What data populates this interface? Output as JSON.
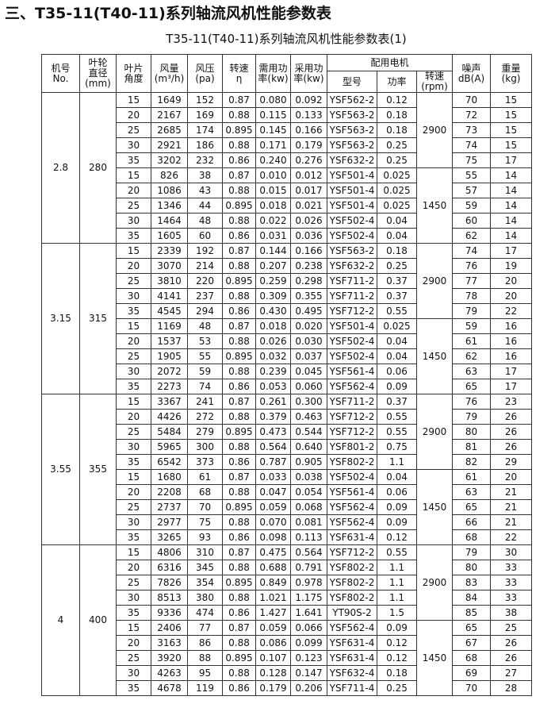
{
  "header": {
    "title": "三、T35-11(T40-11)系列轴流风机性能参数表",
    "subtitle": "T35-11(T40-11)系列轴流风机性能参数表(1)"
  },
  "table": {
    "columns_left": [
      [
        "机号",
        "No."
      ],
      [
        "叶轮",
        "直径",
        "(mm)"
      ],
      [
        "叶片",
        "角度"
      ],
      [
        "风量",
        "(m³/h)"
      ],
      [
        "风压",
        "(pa)"
      ],
      [
        "转速",
        "η"
      ],
      [
        "需用功",
        "率(kw)"
      ],
      [
        "采用功",
        "率(kw)"
      ]
    ],
    "motor": {
      "label": "配用电机",
      "columns": [
        [
          "型号"
        ],
        [
          "功率"
        ],
        [
          "转速",
          "(rpm)"
        ]
      ]
    },
    "columns_right": [
      [
        "噪声",
        "dB(A)"
      ],
      [
        "重量",
        "(kg)"
      ]
    ],
    "groups": [
      {
        "no": "2.8",
        "diameter": "280",
        "subgroups": [
          {
            "rpm": "2900",
            "rows": [
              [
                "15",
                "1649",
                "152",
                "0.87",
                "0.080",
                "0.092",
                "YSF562-2",
                "0.12",
                "70",
                "15"
              ],
              [
                "20",
                "2167",
                "169",
                "0.88",
                "0.115",
                "0.133",
                "YSF563-2",
                "0.18",
                "72",
                "15"
              ],
              [
                "25",
                "2685",
                "174",
                "0.895",
                "0.145",
                "0.166",
                "YSF563-2",
                "0.18",
                "73",
                "15"
              ],
              [
                "30",
                "2921",
                "186",
                "0.88",
                "0.171",
                "0.179",
                "YSF563-2",
                "0.25",
                "74",
                "15"
              ],
              [
                "35",
                "3202",
                "232",
                "0.86",
                "0.240",
                "0.276",
                "YSF632-2",
                "0.25",
                "75",
                "17"
              ]
            ]
          },
          {
            "rpm": "1450",
            "rows": [
              [
                "15",
                "826",
                "38",
                "0.87",
                "0.010",
                "0.012",
                "YSF501-4",
                "0.025",
                "55",
                "14"
              ],
              [
                "20",
                "1086",
                "43",
                "0.88",
                "0.015",
                "0.017",
                "YSF501-4",
                "0.025",
                "57",
                "14"
              ],
              [
                "25",
                "1346",
                "44",
                "0.895",
                "0.018",
                "0.021",
                "YSF501-4",
                "0.025",
                "59",
                "14"
              ],
              [
                "30",
                "1464",
                "48",
                "0.88",
                "0.022",
                "0.026",
                "YSF502-4",
                "0.04",
                "60",
                "14"
              ],
              [
                "35",
                "1605",
                "60",
                "0.86",
                "0.031",
                "0.036",
                "YSF502-4",
                "0.04",
                "62",
                "14"
              ]
            ]
          }
        ]
      },
      {
        "no": "3.15",
        "diameter": "315",
        "subgroups": [
          {
            "rpm": "2900",
            "rows": [
              [
                "15",
                "2339",
                "192",
                "0.87",
                "0.144",
                "0.166",
                "YSF563-2",
                "0.18",
                "74",
                "17"
              ],
              [
                "20",
                "3070",
                "214",
                "0.88",
                "0.207",
                "0.238",
                "YSF632-2",
                "0.25",
                "76",
                "19"
              ],
              [
                "25",
                "3810",
                "220",
                "0.895",
                "0.259",
                "0.298",
                "YSF711-2",
                "0.37",
                "77",
                "20"
              ],
              [
                "30",
                "4141",
                "237",
                "0.88",
                "0.309",
                "0.355",
                "YSF711-2",
                "0.37",
                "78",
                "20"
              ],
              [
                "35",
                "4545",
                "294",
                "0.86",
                "0.430",
                "0.495",
                "YSF712-2",
                "0.55",
                "79",
                "22"
              ]
            ]
          },
          {
            "rpm": "1450",
            "rows": [
              [
                "15",
                "1169",
                "48",
                "0.87",
                "0.018",
                "0.020",
                "YSF501-4",
                "0.025",
                "59",
                "16"
              ],
              [
                "20",
                "1537",
                "53",
                "0.88",
                "0.026",
                "0.030",
                "YSF502-4",
                "0.04",
                "61",
                "16"
              ],
              [
                "25",
                "1905",
                "55",
                "0.895",
                "0.032",
                "0.037",
                "YSF502-4",
                "0.04",
                "62",
                "16"
              ],
              [
                "30",
                "2072",
                "59",
                "0.88",
                "0.239",
                "0.045",
                "YSF561-4",
                "0.06",
                "63",
                "17"
              ],
              [
                "35",
                "2273",
                "74",
                "0.86",
                "0.053",
                "0.060",
                "YSF562-4",
                "0.09",
                "65",
                "17"
              ]
            ]
          }
        ]
      },
      {
        "no": "3.55",
        "diameter": "355",
        "subgroups": [
          {
            "rpm": "2900",
            "rows": [
              [
                "15",
                "3367",
                "241",
                "0.87",
                "0.261",
                "0.300",
                "YSF711-2",
                "0.37",
                "76",
                "23"
              ],
              [
                "20",
                "4426",
                "272",
                "0.88",
                "0.379",
                "0.463",
                "YSF712-2",
                "0.55",
                "79",
                "26"
              ],
              [
                "25",
                "5484",
                "279",
                "0.895",
                "0.473",
                "0.544",
                "YSF712-2",
                "0.55",
                "80",
                "26"
              ],
              [
                "30",
                "5965",
                "300",
                "0.88",
                "0.564",
                "0.640",
                "YSF801-2",
                "0.75",
                "81",
                "26"
              ],
              [
                "35",
                "6542",
                "373",
                "0.86",
                "0.787",
                "0.905",
                "YSF802-2",
                "1.1",
                "82",
                "29"
              ]
            ]
          },
          {
            "rpm": "1450",
            "rows": [
              [
                "15",
                "1680",
                "61",
                "0.87",
                "0.033",
                "0.038",
                "YSF502-4",
                "0.04",
                "61",
                "20"
              ],
              [
                "20",
                "2208",
                "68",
                "0.88",
                "0.047",
                "0.054",
                "YSF561-4",
                "0.06",
                "63",
                "21"
              ],
              [
                "25",
                "2737",
                "70",
                "0.895",
                "0.059",
                "0.068",
                "YSF562-4",
                "0.09",
                "65",
                "21"
              ],
              [
                "30",
                "2977",
                "75",
                "0.88",
                "0.070",
                "0.081",
                "YSF562-4",
                "0.09",
                "66",
                "21"
              ],
              [
                "35",
                "3265",
                "93",
                "0.86",
                "0.098",
                "0.113",
                "YSF631-4",
                "0.12",
                "68",
                "22"
              ]
            ]
          }
        ]
      },
      {
        "no": "4",
        "diameter": "400",
        "subgroups": [
          {
            "rpm": "2900",
            "rows": [
              [
                "15",
                "4806",
                "310",
                "0.87",
                "0.475",
                "0.564",
                "YSF712-2",
                "0.55",
                "79",
                "30"
              ],
              [
                "20",
                "6316",
                "345",
                "0.88",
                "0.688",
                "0.791",
                "YSF802-2",
                "1.1",
                "80",
                "33"
              ],
              [
                "25",
                "7826",
                "354",
                "0.895",
                "0.849",
                "0.978",
                "YSF802-2",
                "1.1",
                "83",
                "33"
              ],
              [
                "30",
                "8513",
                "380",
                "0.88",
                "1.021",
                "1.175",
                "YSF802-2",
                "1.1",
                "84",
                "33"
              ],
              [
                "35",
                "9336",
                "474",
                "0.86",
                "1.427",
                "1.641",
                "YT90S-2",
                "1.5",
                "85",
                "38"
              ]
            ]
          },
          {
            "rpm": "1450",
            "rows": [
              [
                "15",
                "2406",
                "77",
                "0.87",
                "0.059",
                "0.066",
                "YSF562-4",
                "0.09",
                "65",
                "25"
              ],
              [
                "20",
                "3163",
                "86",
                "0.88",
                "0.086",
                "0.099",
                "YSF631-4",
                "0.12",
                "67",
                "26"
              ],
              [
                "25",
                "3920",
                "88",
                "0.895",
                "0.107",
                "0.123",
                "YSF631-4",
                "0.12",
                "68",
                "26"
              ],
              [
                "30",
                "4263",
                "95",
                "0.88",
                "0.128",
                "0.147",
                "YSF632-4",
                "0.18",
                "69",
                "27"
              ],
              [
                "35",
                "4678",
                "119",
                "0.86",
                "0.179",
                "0.206",
                "YSF711-4",
                "0.25",
                "70",
                "28"
              ]
            ]
          }
        ]
      }
    ]
  }
}
